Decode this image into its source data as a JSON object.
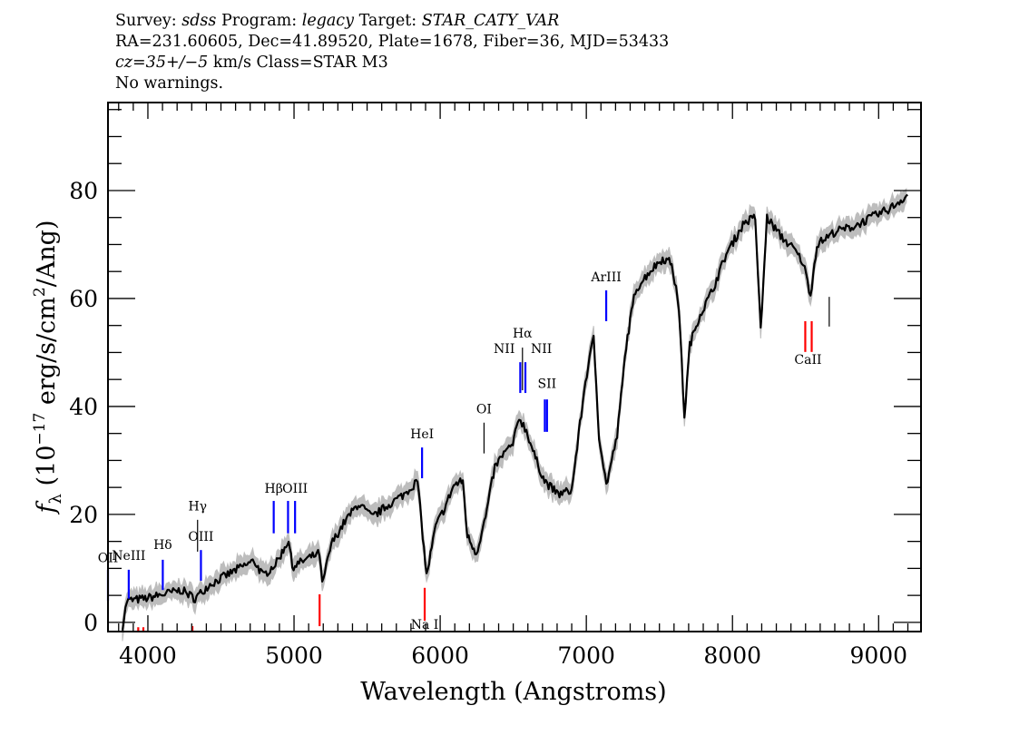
{
  "header": {
    "line1": {
      "survey_label": "Survey:",
      "survey": "sdss",
      "program_label": "Program:",
      "program": "legacy",
      "target_label": "Target:",
      "target": "STAR_CATY_VAR"
    },
    "line2": "RA=231.60605, Dec=41.89520, Plate=1678, Fiber=36, MJD=53433",
    "line3": {
      "cz": "cz=35+/−5",
      "rest": "km/s Class=STAR M3"
    },
    "line4": "No warnings."
  },
  "chart_data": {
    "type": "line",
    "title": "",
    "xlabel": "Wavelength (Angstroms)",
    "ylabel": "fλ (10⁻¹⁷ erg/s/cm²/Ang)",
    "ylabel_parts": {
      "f": "f",
      "sub": "λ",
      "a": " (10",
      "exp1": "−17",
      "b": " erg/s/cm",
      "exp2": "2",
      "c": "/Ang)"
    },
    "xlim": [
      3727,
      9290
    ],
    "ylim": [
      -1.7,
      96.3
    ],
    "x_ticks": [
      4000,
      5000,
      6000,
      7000,
      8000,
      9000
    ],
    "x_tick_labels": [
      "4000",
      "5000",
      "6000",
      "7000",
      "8000",
      "9000"
    ],
    "y_ticks": [
      0,
      20,
      40,
      60,
      80
    ],
    "y_tick_labels": [
      "0",
      "20",
      "40",
      "60",
      "80"
    ],
    "grid": false,
    "colors": {
      "flux": "#000000",
      "error": "#bdbdbd",
      "emission": "#0000ff",
      "absorption": "#ff0000",
      "sky": "#000000"
    },
    "series": [
      {
        "name": "flux",
        "x": [
          3826,
          3857,
          3981,
          4106,
          4230,
          4323,
          4416,
          4602,
          4727,
          4789,
          4882,
          4963,
          4988,
          5099,
          5174,
          5193,
          5255,
          5348,
          5441,
          5534,
          5658,
          5752,
          5845,
          5907,
          5969,
          6031,
          6093,
          6155,
          6186,
          6248,
          6311,
          6373,
          6435,
          6497,
          6540,
          6590,
          6652,
          6714,
          6807,
          6900,
          6994,
          7050,
          7087,
          7137,
          7211,
          7273,
          7335,
          7429,
          7522,
          7584,
          7634,
          7671,
          7708,
          7770,
          7863,
          7957,
          8081,
          8156,
          8193,
          8236,
          8329,
          8422,
          8484,
          8534,
          8578,
          8702,
          8826,
          8950,
          9075,
          9199
        ],
        "y": [
          -0.7,
          4,
          4.4,
          5.2,
          6,
          4.4,
          6.9,
          9.7,
          11.4,
          8.6,
          11.1,
          15.3,
          10.3,
          11.9,
          12.8,
          6.9,
          14.5,
          18.7,
          22,
          19.5,
          22,
          23.7,
          26.2,
          8.6,
          17.8,
          21.2,
          25.4,
          26.2,
          16,
          12.8,
          19.5,
          28.7,
          31.3,
          32.9,
          38,
          35.5,
          30.4,
          26.2,
          23.7,
          24.5,
          44.7,
          52.8,
          34.6,
          25.4,
          34.6,
          51.4,
          61.5,
          64.9,
          67.4,
          66.6,
          58.2,
          38,
          51.4,
          56.5,
          61.5,
          68.2,
          74.1,
          75,
          54,
          75,
          71.6,
          69.1,
          66.6,
          60.7,
          70,
          72.4,
          73.3,
          75,
          76.6,
          79.2
        ]
      }
    ],
    "line_markers": [
      {
        "label": "OII",
        "wavelength": 3727,
        "type": "emission",
        "y0": 4.0,
        "y1": 9.75,
        "label_y": 11.2
      },
      {
        "label": "NeIII",
        "wavelength": 3869,
        "type": "emission",
        "y0": 4.4,
        "y1": 9.75,
        "label_y": 11.6
      },
      {
        "label": "Hδ",
        "wavelength": 4102,
        "type": "emission",
        "y0": 6.0,
        "y1": 11.6,
        "label_y": 13.6
      },
      {
        "label": "Hγ",
        "wavelength": 4340,
        "type": "sky",
        "y0": 13.1,
        "y1": 19.0,
        "label_y": 20.7
      },
      {
        "label": "OIII",
        "wavelength": 4363,
        "type": "emission",
        "y0": 7.7,
        "y1": 13.4,
        "label_y": 15.1
      },
      {
        "label": "Hβ",
        "wavelength": 4861,
        "type": "emission",
        "y0": 16.5,
        "y1": 22.5,
        "label_y": 24.0
      },
      {
        "label": "",
        "wavelength": 4959,
        "type": "emission",
        "y0": 16.5,
        "y1": 22.5,
        "label_y": 24.0
      },
      {
        "label": "OIII",
        "wavelength": 5007,
        "type": "emission",
        "y0": 16.5,
        "y1": 22.5,
        "label_y": 24.0
      },
      {
        "label": "HeI",
        "wavelength": 5876,
        "type": "emission",
        "y0": 26.7,
        "y1": 32.4,
        "label_y": 34.1
      },
      {
        "label": "OI",
        "wavelength": 6300,
        "type": "sky",
        "y0": 31.3,
        "y1": 37.0,
        "label_y": 38.7
      },
      {
        "label": "NII",
        "wavelength": 6548,
        "type": "emission",
        "y0": 42.5,
        "y1": 48.2,
        "label_y": 49.9,
        "anchor": "end"
      },
      {
        "label": "Hα",
        "wavelength": 6563,
        "type": "sky",
        "y0": 43.0,
        "y1": 50.9,
        "label_y": 52.8
      },
      {
        "label": "NII",
        "wavelength": 6583,
        "type": "emission",
        "y0": 42.5,
        "y1": 48.2,
        "label_y": 49.9,
        "anchor": "start"
      },
      {
        "label": "",
        "wavelength": 6716,
        "type": "emission",
        "y0": 35.3,
        "y1": 41.3,
        "label_y": 43.4
      },
      {
        "label": "SII",
        "wavelength": 6731,
        "type": "emission",
        "y0": 35.3,
        "y1": 41.3,
        "label_y": 43.4
      },
      {
        "label": "ArIII",
        "wavelength": 7136,
        "type": "emission",
        "y0": 55.8,
        "y1": 61.5,
        "label_y": 63.2
      },
      {
        "label": "",
        "wavelength": 8498,
        "type": "absorption",
        "y0": 50.1,
        "y1": 55.8,
        "label_y": 47.9
      },
      {
        "label": "CaII",
        "wavelength": 8542,
        "type": "absorption",
        "y0": 50.1,
        "y1": 55.8,
        "label_y": 47.9,
        "label_offset_wl": -25
      },
      {
        "label": "",
        "wavelength": 8662,
        "type": "sky",
        "y0": 54.8,
        "y1": 60.3,
        "label_y": 62
      },
      {
        "label": "",
        "wavelength": 3934,
        "type": "absorption",
        "y0": -1.7,
        "y1": -0.9,
        "label_y": -2
      },
      {
        "label": "",
        "wavelength": 3969,
        "type": "absorption",
        "y0": -1.7,
        "y1": -0.9,
        "label_y": -2
      },
      {
        "label": "",
        "wavelength": 4305,
        "type": "absorption",
        "y0": -1.7,
        "y1": -0.7,
        "label_y": -2
      },
      {
        "label": "",
        "wavelength": 5175,
        "type": "absorption",
        "y0": -0.7,
        "y1": 5.2,
        "label_y": -2
      },
      {
        "label": "Na I",
        "wavelength": 5894,
        "type": "absorption",
        "y0": 0.3,
        "y1": 6.4,
        "label_y": -1.2
      }
    ]
  }
}
